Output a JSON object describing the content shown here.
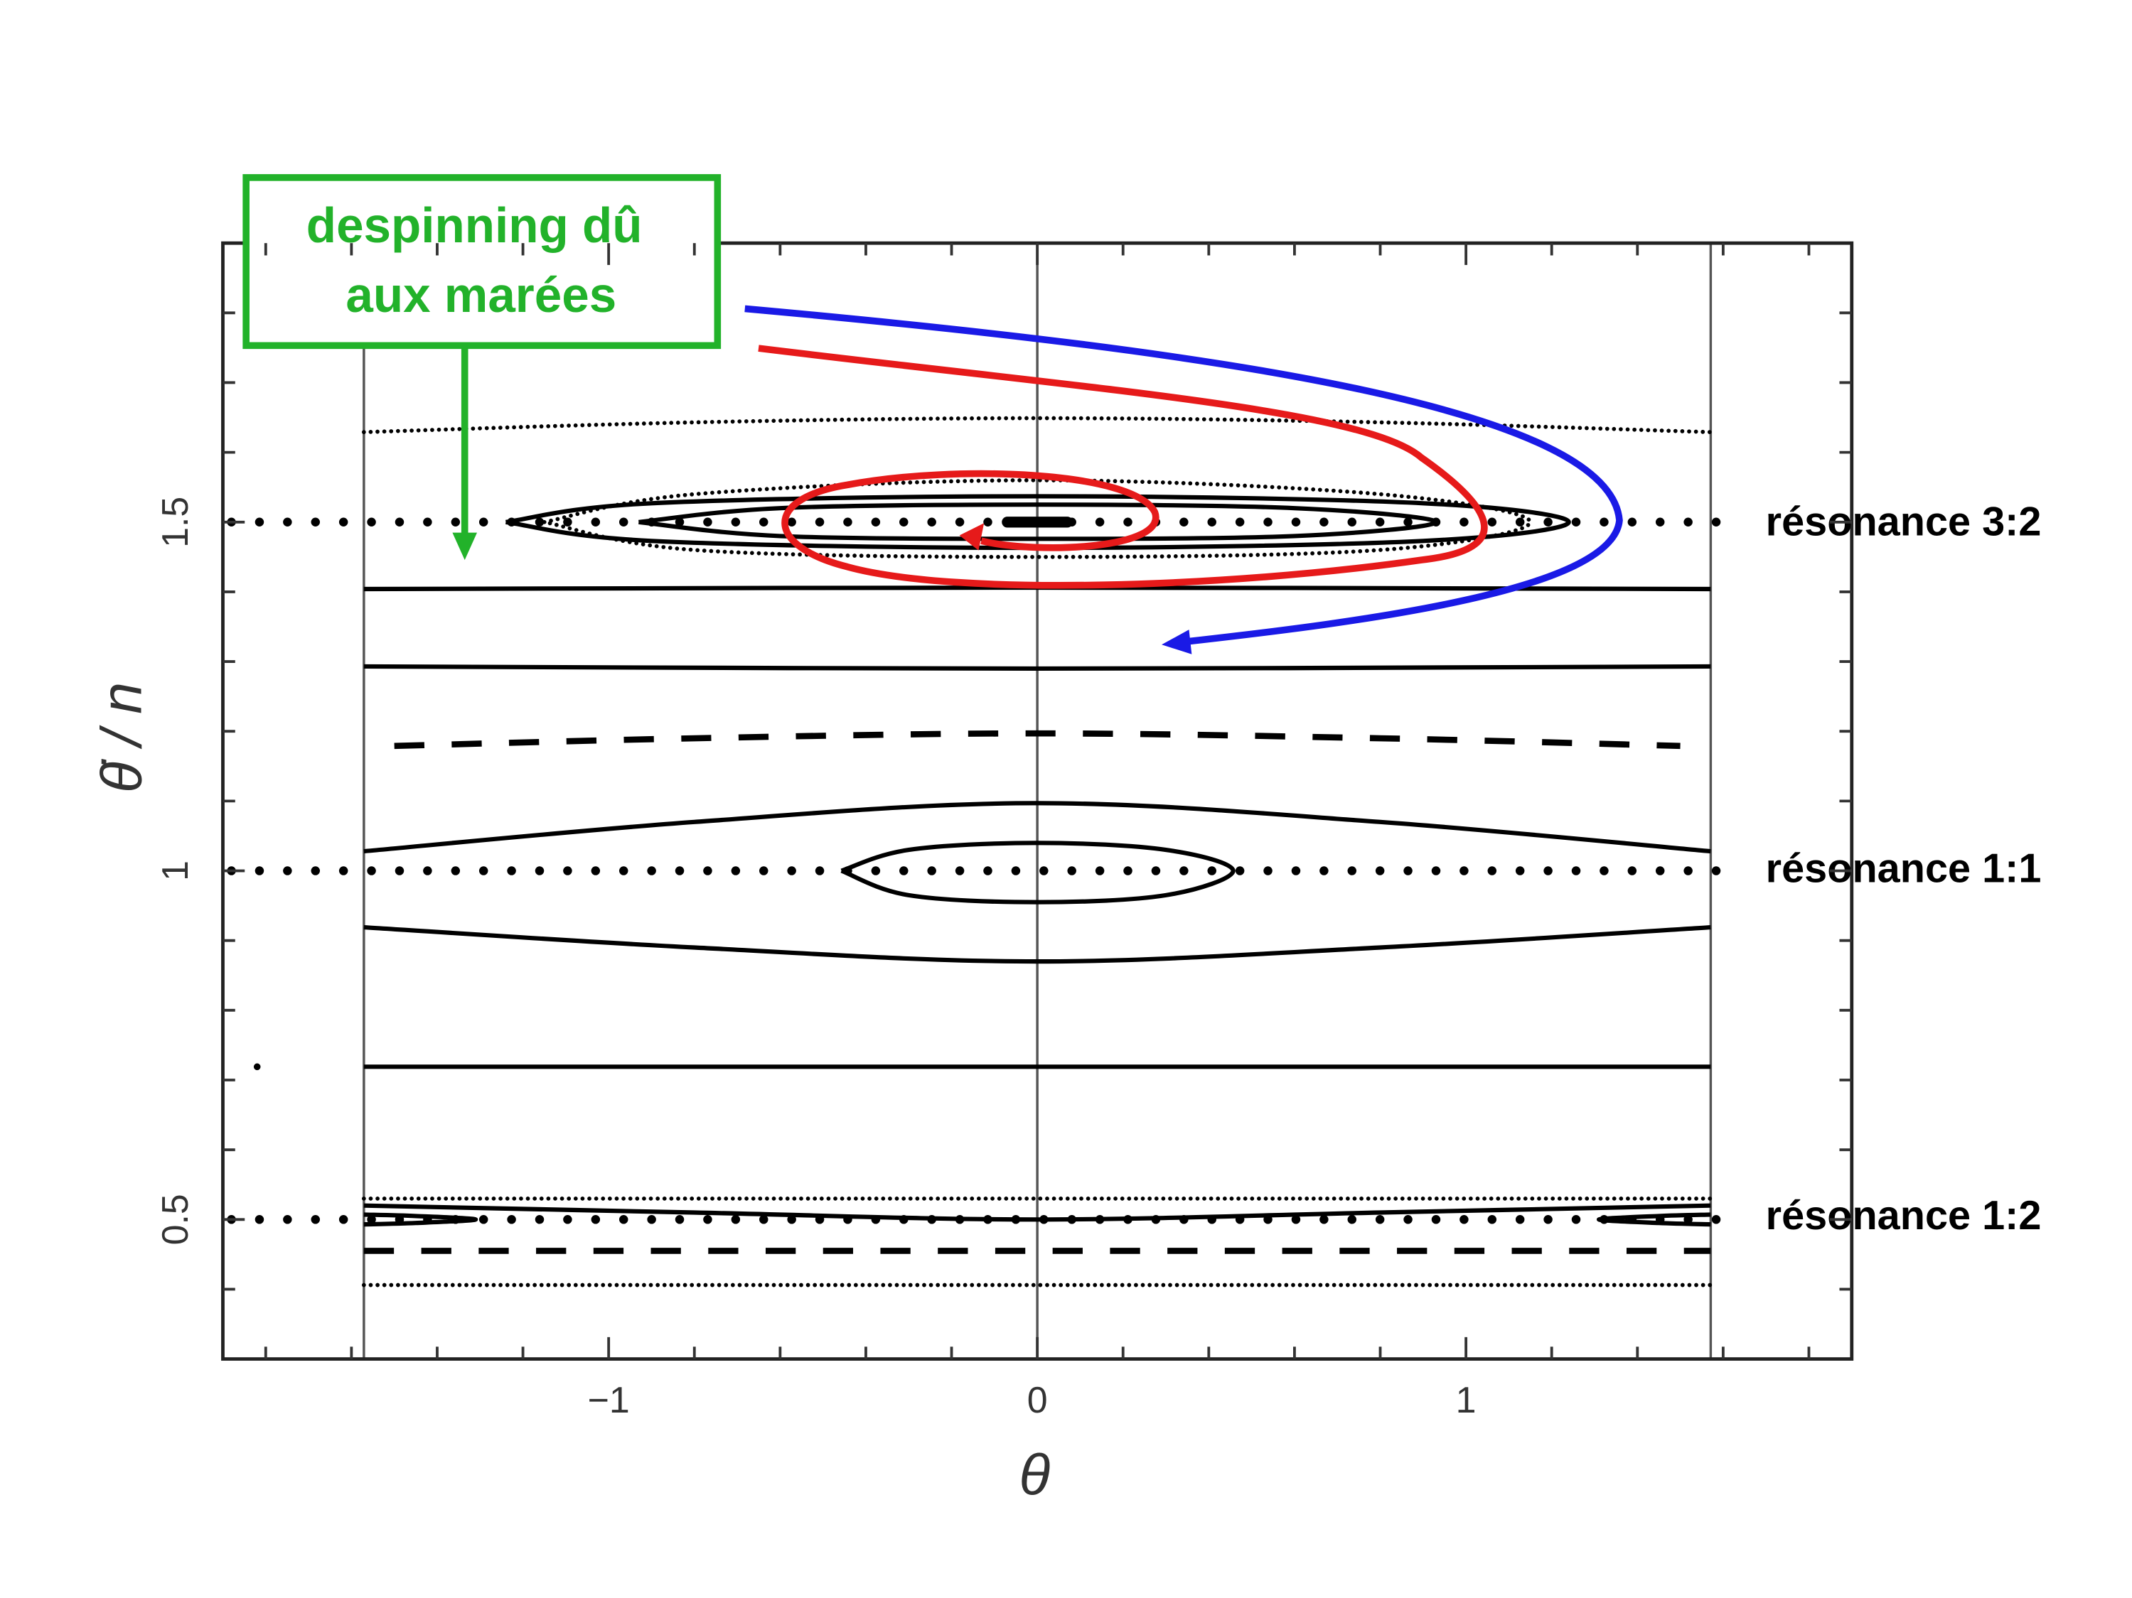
{
  "chart_data": {
    "type": "phase-portrait",
    "xlabel": "θ",
    "ylabel": "θ̇ / n",
    "xlim": [
      -1.9,
      1.9
    ],
    "ylim": [
      0.3,
      1.9
    ],
    "xticks": [
      {
        "value": -1,
        "label": "−1"
      },
      0,
      1
    ],
    "yticks": [
      0.5,
      1,
      1.5
    ],
    "xminorticks": [
      -1.8,
      -1.6,
      -1.4,
      -1.2,
      -0.8,
      -0.6,
      -0.4,
      -0.2,
      0.2,
      0.4,
      0.6,
      0.8,
      1.2,
      1.4,
      1.6,
      1.8
    ],
    "yminorticks": [
      0.4,
      0.6,
      0.7,
      0.8,
      0.9,
      1.1,
      1.2,
      1.3,
      1.4,
      1.6,
      1.7,
      1.8
    ],
    "vlines": [
      -1.571,
      0,
      1.571
    ],
    "color": "#000000",
    "series": [
      {
        "style": "fine",
        "x": [
          -1.571,
          -0.8,
          0,
          0.8,
          1.571
        ],
        "values": [
          1.629,
          1.643,
          1.649,
          1.643,
          1.629
        ]
      },
      {
        "style": "dots",
        "x": [
          -1.88,
          1.62
        ],
        "values": [
          1.5,
          1.5
        ]
      },
      {
        "style": "solid",
        "x": [
          -1.24,
          -0.9,
          0,
          0.9,
          1.24,
          0.9,
          0,
          -0.9,
          -1.24
        ],
        "values": [
          1.5,
          1.527,
          1.537,
          1.527,
          1.5,
          1.473,
          1.463,
          1.473,
          1.5
        ]
      },
      {
        "style": "solid",
        "x": [
          -0.93,
          -0.6,
          0,
          0.6,
          0.93,
          0.6,
          0,
          -0.6,
          -0.93
        ],
        "values": [
          1.5,
          1.52,
          1.525,
          1.52,
          1.5,
          1.48,
          1.476,
          1.48,
          1.5
        ]
      },
      {
        "style": "fine",
        "x": [
          -1.15,
          -0.8,
          0,
          0.8,
          1.15,
          0.8,
          0,
          -0.8,
          -1.15
        ],
        "values": [
          1.5,
          1.54,
          1.56,
          1.54,
          1.5,
          1.46,
          1.45,
          1.46,
          1.5
        ]
      },
      {
        "style": "thick",
        "x": [
          -0.07,
          0.07
        ],
        "values": [
          1.5,
          1.5
        ]
      },
      {
        "style": "solid",
        "x": [
          -1.571,
          0,
          1.571
        ],
        "values": [
          1.404,
          1.406,
          1.404
        ]
      },
      {
        "style": "solid",
        "x": [
          -1.571,
          0,
          1.571
        ],
        "values": [
          1.293,
          1.29,
          1.293
        ]
      },
      {
        "style": "dashed",
        "x": [
          -1.5,
          -0.8,
          0,
          0.8,
          1.5
        ],
        "values": [
          1.179,
          1.19,
          1.197,
          1.19,
          1.179
        ]
      },
      {
        "style": "solid",
        "x": [
          -1.571,
          -0.8,
          0,
          0.8,
          1.571
        ],
        "values": [
          1.028,
          1.07,
          1.097,
          1.07,
          1.028
        ]
      },
      {
        "style": "dots",
        "x": [
          -1.88,
          1.62
        ],
        "values": [
          1,
          1
        ]
      },
      {
        "style": "solid",
        "x": [
          -0.457,
          -0.3,
          0,
          0.3,
          0.457,
          0.3,
          0,
          -0.3,
          -0.457
        ],
        "values": [
          1,
          1.03,
          1.04,
          1.03,
          1,
          0.965,
          0.955,
          0.965,
          1
        ]
      },
      {
        "style": "solid",
        "x": [
          -1.571,
          -0.8,
          0,
          0.8,
          1.571
        ],
        "values": [
          0.919,
          0.89,
          0.87,
          0.89,
          0.919
        ]
      },
      {
        "style": "solid",
        "x": [
          -1.571,
          0,
          1.571
        ],
        "values": [
          0.719,
          0.719,
          0.719
        ]
      },
      {
        "style": "fine",
        "x": [
          -1.571,
          1.571
        ],
        "values": [
          0.53,
          0.53
        ]
      },
      {
        "style": "solid",
        "x": [
          -1.571,
          -0.8,
          0,
          0.8,
          1.571
        ],
        "values": [
          0.52,
          0.51,
          0.5,
          0.51,
          0.52
        ]
      },
      {
        "style": "dots",
        "x": [
          -1.88,
          1.62
        ],
        "values": [
          0.5,
          0.5
        ]
      },
      {
        "style": "solid",
        "x": [
          -1.571,
          -1.45,
          -1.31,
          -1.45,
          -1.571
        ],
        "values": [
          0.507,
          0.505,
          0.5,
          0.495,
          0.493
        ]
      },
      {
        "style": "solid",
        "x": [
          1.571,
          1.45,
          1.31,
          1.45,
          1.571
        ],
        "values": [
          0.507,
          0.505,
          0.5,
          0.495,
          0.493
        ]
      },
      {
        "style": "dashed",
        "x": [
          -1.571,
          1.571
        ],
        "values": [
          0.455,
          0.455
        ]
      },
      {
        "style": "fine",
        "x": [
          -1.571,
          1.571
        ],
        "values": [
          0.406,
          0.406
        ]
      },
      {
        "style": "point",
        "x": [
          -1.82
        ],
        "values": [
          0.719
        ]
      }
    ],
    "resonance_labels": [
      "résonance 3:2",
      "résonance 1:1",
      "résonance 1:2"
    ],
    "note": [
      "despinning dû",
      "aux marées"
    ]
  }
}
